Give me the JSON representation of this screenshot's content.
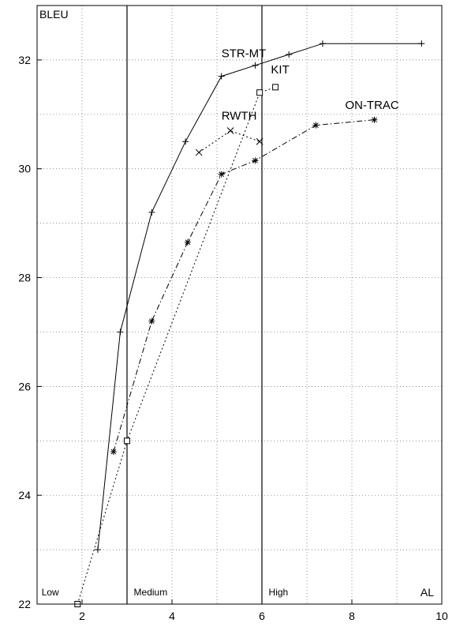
{
  "chart_data": {
    "type": "line",
    "xlabel": "AL",
    "ylabel": "BLEU",
    "xlim": [
      1,
      10
    ],
    "ylim": [
      22,
      33
    ],
    "xticks": [
      2,
      4,
      6,
      8,
      10
    ],
    "yticks": [
      22,
      24,
      26,
      28,
      30,
      32
    ],
    "grid": true,
    "grid_style": "dotted, every 1 unit",
    "latency_regions": {
      "boundaries": [
        3,
        6
      ],
      "labels": [
        {
          "text": "Low",
          "x": 1.1
        },
        {
          "text": "Medium",
          "x": 3.15
        },
        {
          "text": "High",
          "x": 6.15
        }
      ]
    },
    "series": [
      {
        "name": "STR-MT",
        "label_at": [
          5.1,
          32.05
        ],
        "line_style": "solid",
        "marker": "plus",
        "points": [
          [
            2.35,
            23.0
          ],
          [
            2.85,
            27.0
          ],
          [
            3.55,
            29.2
          ],
          [
            4.3,
            30.5
          ],
          [
            5.1,
            31.7
          ],
          [
            5.85,
            31.9
          ],
          [
            6.6,
            32.1
          ],
          [
            7.35,
            32.3
          ],
          [
            9.55,
            32.3
          ]
        ]
      },
      {
        "name": "KIT",
        "label_at": [
          6.2,
          31.75
        ],
        "line_style": "dotted",
        "marker": "square",
        "points": [
          [
            1.9,
            22.0
          ],
          [
            3.0,
            25.0
          ],
          [
            5.95,
            31.4
          ],
          [
            6.3,
            31.5
          ]
        ]
      },
      {
        "name": "RWTH",
        "label_at": [
          5.1,
          30.9
        ],
        "line_style": "dotted",
        "marker": "x",
        "points": [
          [
            4.6,
            30.3
          ],
          [
            5.3,
            30.7
          ],
          [
            5.95,
            30.5
          ]
        ]
      },
      {
        "name": "ON-TRAC",
        "label_at": [
          7.85,
          31.1
        ],
        "line_style": "dash-dot",
        "marker": "star",
        "points": [
          [
            2.7,
            24.8
          ],
          [
            3.55,
            27.2
          ],
          [
            4.35,
            28.65
          ],
          [
            5.1,
            29.9
          ],
          [
            5.85,
            30.15
          ],
          [
            7.2,
            30.8
          ],
          [
            8.5,
            30.9
          ]
        ]
      }
    ]
  }
}
